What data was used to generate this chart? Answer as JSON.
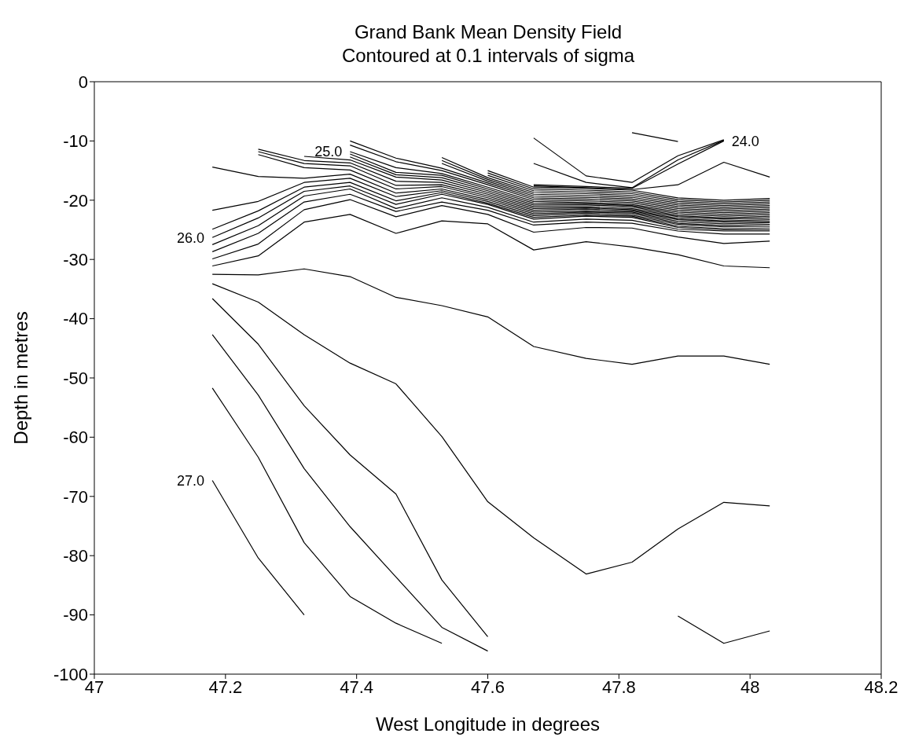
{
  "chart_data": {
    "type": "line",
    "title": "Grand Bank Mean Density Field",
    "subtitle": "Contoured at 0.1 intervals of sigma",
    "xlabel": "West Longitude in degrees",
    "ylabel": "Depth in metres",
    "x": [
      47.18,
      47.25,
      47.32,
      47.39,
      47.46,
      47.53,
      47.6,
      47.67,
      47.75,
      47.82,
      47.89,
      47.96,
      48.03
    ],
    "xlim": [
      47,
      48.2
    ],
    "xticks": [
      47,
      47.2,
      47.4,
      47.6,
      47.8,
      48,
      48.2
    ],
    "ylim": [
      -100,
      0
    ],
    "yticks": [
      -100,
      -90,
      -80,
      -70,
      -60,
      -50,
      -40,
      -30,
      -20,
      -10,
      0
    ],
    "series": [
      {
        "color": "#000000",
        "values": [
          null,
          null,
          null,
          null,
          null,
          null,
          null,
          -9.5,
          -15.9,
          -17.0,
          -12.5,
          -9.8,
          null
        ]
      },
      {
        "color": "#000000",
        "values": [
          null,
          null,
          null,
          null,
          null,
          null,
          null,
          -13.8,
          -17.0,
          -17.9,
          -13.2,
          -9.9,
          null
        ]
      },
      {
        "color": "#000000",
        "values": [
          null,
          null,
          null,
          null,
          null,
          null,
          null,
          null,
          null,
          -8.6,
          -10.1,
          null,
          null
        ]
      },
      {
        "color": "#000000",
        "values": [
          null,
          null,
          null,
          null,
          null,
          null,
          null,
          -17.4,
          -17.7,
          -18.0,
          -13.9,
          -10.0,
          null
        ]
      },
      {
        "color": "#000000",
        "values": [
          null,
          null,
          null,
          null,
          null,
          null,
          null,
          -17.6,
          -17.9,
          -18.2,
          -17.4,
          -13.6,
          -16.1
        ]
      },
      {
        "color": "#000000",
        "values": [
          null,
          null,
          null,
          null,
          null,
          null,
          -15.0,
          -17.8,
          -18.0,
          -18.3,
          -19.6,
          -20.0,
          -19.7
        ]
      },
      {
        "color": "#000000",
        "values": [
          null,
          null,
          null,
          null,
          null,
          null,
          -15.4,
          -18.1,
          -18.3,
          -18.6,
          -19.9,
          -20.3,
          -20.0
        ]
      },
      {
        "color": "#000000",
        "values": [
          null,
          null,
          null,
          null,
          null,
          null,
          -15.8,
          -18.4,
          -18.6,
          -18.9,
          -20.2,
          -20.6,
          -20.3
        ]
      },
      {
        "color": "#000000",
        "values": [
          null,
          null,
          null,
          null,
          null,
          -12.8,
          -16.2,
          -18.7,
          -18.9,
          -19.2,
          -20.5,
          -20.9,
          -20.6
        ]
      },
      {
        "color": "#000000",
        "values": [
          null,
          null,
          null,
          null,
          null,
          -13.3,
          -16.5,
          -19.0,
          -19.2,
          -19.5,
          -20.8,
          -21.2,
          -20.9
        ]
      },
      {
        "color": "#000000",
        "values": [
          null,
          null,
          null,
          null,
          null,
          -13.8,
          -16.8,
          -19.3,
          -19.5,
          -19.8,
          -21.1,
          -21.5,
          -21.2
        ]
      },
      {
        "color": "#000000",
        "values": [
          null,
          null,
          null,
          -10.0,
          -12.9,
          -14.6,
          -17.1,
          -19.6,
          -19.8,
          -20.1,
          -21.4,
          -21.8,
          -21.5
        ]
      },
      {
        "color": "#000000",
        "values": [
          null,
          null,
          null,
          -10.7,
          -13.5,
          -15.0,
          -17.4,
          -19.9,
          -20.1,
          -20.4,
          -21.7,
          -22.1,
          -21.8
        ]
      },
      {
        "color": "#000000",
        "values": [
          null,
          null,
          null,
          -11.8,
          -14.5,
          -15.5,
          -17.8,
          -20.2,
          -20.4,
          -20.7,
          -22.0,
          -22.4,
          -22.1
        ]
      },
      {
        "color": "#000000",
        "values": [
          null,
          null,
          null,
          -12.2,
          -15.3,
          -15.8,
          -18.1,
          -20.5,
          -20.6,
          -20.9,
          -22.3,
          -22.7,
          -22.4
        ]
      },
      {
        "color": "#000000",
        "values": [
          null,
          null,
          null,
          -12.7,
          -15.7,
          -16.2,
          -18.4,
          -20.8,
          -20.8,
          -21.1,
          -22.6,
          -23.0,
          -22.7
        ]
      },
      {
        "color": "#000000",
        "values": [
          null,
          null,
          -12.6,
          -13.2,
          -16.1,
          -16.6,
          -18.7,
          -21.1,
          -21.1,
          -21.4,
          -22.8,
          -23.2,
          -23.0
        ]
      },
      {
        "color": "#000000",
        "values": [
          null,
          -11.4,
          -13.3,
          -13.7,
          -16.8,
          -17.0,
          -19.0,
          -21.4,
          -21.3,
          -21.6,
          -23.1,
          -23.5,
          -23.3
        ]
      },
      {
        "color": "#000000",
        "values": [
          null,
          -11.8,
          -13.8,
          -14.2,
          -17.5,
          -17.4,
          -19.3,
          -21.7,
          -21.5,
          -21.8,
          -23.3,
          -23.7,
          -23.6
        ]
      },
      {
        "color": "#000000",
        "values": [
          null,
          -12.3,
          -14.5,
          -14.9,
          -18.1,
          -17.7,
          -19.6,
          -22.0,
          -21.8,
          -22.0,
          -23.6,
          -24.0,
          -23.8
        ]
      },
      {
        "color": "#000000",
        "values": [
          -14.4,
          -16.0,
          -16.3,
          -15.6,
          -18.8,
          -18.1,
          -19.9,
          -22.3,
          -22.0,
          -22.2,
          -23.9,
          -24.3,
          -24.1
        ]
      },
      {
        "color": "#000000",
        "values": [
          -21.7,
          -20.2,
          -17.0,
          -16.3,
          -19.4,
          -18.4,
          -20.2,
          -22.6,
          -22.2,
          -22.5,
          -24.1,
          -24.5,
          -24.4
        ]
      },
      {
        "color": "#000000",
        "values": [
          -24.9,
          -21.8,
          -17.8,
          -17.0,
          -20.1,
          -18.7,
          -20.5,
          -22.9,
          -22.5,
          -22.7,
          -24.4,
          -24.8,
          -24.7
        ]
      },
      {
        "color": "#000000",
        "values": [
          -26.3,
          -23.0,
          -18.5,
          -17.6,
          -20.7,
          -19.0,
          -20.7,
          -23.2,
          -22.7,
          -22.9,
          -24.6,
          -25.0,
          -25.0
        ]
      },
      {
        "color": "#000000",
        "values": [
          -27.5,
          -24.3,
          -19.3,
          -18.1,
          -21.4,
          -19.6,
          -21.2,
          -23.7,
          -23.2,
          -23.4,
          -24.9,
          -25.2,
          -25.2
        ]
      },
      {
        "color": "#000000",
        "values": [
          -28.7,
          -25.6,
          -20.3,
          -19.0,
          -21.9,
          -20.3,
          -21.7,
          -24.2,
          -23.7,
          -23.9,
          -25.2,
          -25.7,
          -25.7
        ]
      },
      {
        "color": "#000000",
        "values": [
          -29.9,
          -27.4,
          -21.6,
          -19.9,
          -22.8,
          -20.9,
          -22.4,
          -25.4,
          -24.6,
          -24.7,
          -26.2,
          -27.3,
          -26.9
        ]
      },
      {
        "color": "#000000",
        "values": [
          -31.1,
          -29.4,
          -23.7,
          -22.4,
          -25.6,
          -23.5,
          -24.0,
          -28.4,
          -27.0,
          -27.9,
          -29.2,
          -31.1,
          -31.4
        ]
      },
      {
        "color": "#000000",
        "values": [
          -32.5,
          -32.6,
          -31.6,
          -32.9,
          -36.4,
          -37.8,
          -39.7,
          -44.7,
          -46.7,
          -47.7,
          -46.3,
          -46.3,
          -47.7
        ]
      },
      {
        "color": "#000000",
        "values": [
          -34.1,
          -37.2,
          -42.7,
          -47.5,
          -51.0,
          -59.9,
          -70.9,
          -77.0,
          -83.1,
          -81.1,
          -75.5,
          -71.0,
          -71.6
        ]
      },
      {
        "color": "#000000",
        "values": [
          -36.6,
          -44.3,
          -54.7,
          -63.0,
          -69.6,
          -84.1,
          -93.7,
          null,
          null,
          null,
          null,
          null,
          null
        ]
      },
      {
        "color": "#000000",
        "values": [
          -42.7,
          -52.9,
          -65.3,
          -75.1,
          -83.6,
          -92.1,
          -96.1,
          null,
          null,
          null,
          null,
          null,
          null
        ]
      },
      {
        "color": "#000000",
        "values": [
          -51.7,
          -63.4,
          -77.8,
          -86.9,
          -91.4,
          -94.8,
          null,
          null,
          null,
          null,
          null,
          null,
          null
        ]
      },
      {
        "color": "#000000",
        "values": [
          -67.3,
          -80.4,
          -90.0,
          null,
          null,
          null,
          null,
          null,
          null,
          null,
          null,
          null,
          null
        ]
      },
      {
        "color": "#000000",
        "values": [
          null,
          null,
          null,
          null,
          null,
          null,
          null,
          null,
          null,
          null,
          -90.2,
          -94.8,
          -92.7
        ]
      }
    ],
    "annotations": [
      {
        "text": "24.0",
        "x": 47.96,
        "y": -10.0
      },
      {
        "text": "25.0",
        "x": 47.39,
        "y": -11.8
      },
      {
        "text": "26.0",
        "x": 47.18,
        "y": -26.3
      },
      {
        "text": "27.0",
        "x": 47.18,
        "y": -67.3
      }
    ]
  }
}
